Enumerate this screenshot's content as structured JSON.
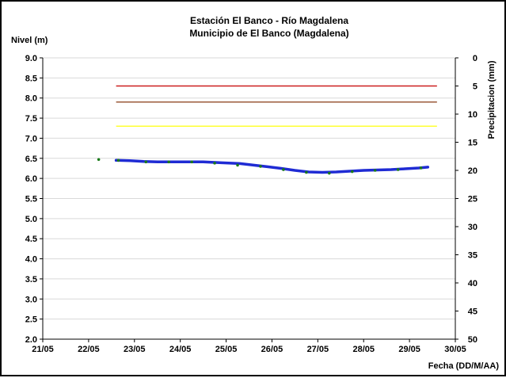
{
  "chart_data": {
    "type": "line",
    "title": "Estación El Banco - Río Magdalena",
    "subtitle": "Municipio de El Banco (Magdalena)",
    "ylabel": "Nivel (m)",
    "y2label": "Precipitacion (mm)",
    "xlabel": "Fecha (DD/M/AA)",
    "ylim": [
      2.0,
      9.0
    ],
    "y2lim": [
      0,
      50
    ],
    "y2_reversed": true,
    "x_ticks": [
      "21/05",
      "22/05",
      "23/05",
      "24/05",
      "25/05",
      "26/05",
      "27/05",
      "28/05",
      "29/05",
      "30/05"
    ],
    "y_ticks": [
      "2.0",
      "2.5",
      "3.0",
      "3.5",
      "4.0",
      "4.5",
      "5.0",
      "5.5",
      "6.0",
      "6.5",
      "7.0",
      "7.5",
      "8.0",
      "8.5",
      "9.0"
    ],
    "y2_ticks": [
      "0",
      "5",
      "10",
      "15",
      "20",
      "25",
      "30",
      "35",
      "40",
      "45",
      "50"
    ],
    "grid": true,
    "thresholds": [
      {
        "y": 8.3,
        "color": "#cc1f1f"
      },
      {
        "y": 7.9,
        "color": "#9b5a3a"
      },
      {
        "y": 7.3,
        "color": "#ffff33"
      }
    ],
    "series": [
      {
        "type": "line",
        "color": "#1f2bd4",
        "points": [
          [
            22.6,
            6.45
          ],
          [
            22.9,
            6.44
          ],
          [
            23.2,
            6.42
          ],
          [
            23.5,
            6.41
          ],
          [
            23.8,
            6.41
          ],
          [
            24.1,
            6.41
          ],
          [
            24.5,
            6.41
          ],
          [
            24.9,
            6.39
          ],
          [
            25.3,
            6.37
          ],
          [
            25.6,
            6.33
          ],
          [
            25.9,
            6.29
          ],
          [
            26.2,
            6.25
          ],
          [
            26.5,
            6.2
          ],
          [
            26.8,
            6.16
          ],
          [
            27.1,
            6.15
          ],
          [
            27.4,
            6.16
          ],
          [
            27.7,
            6.18
          ],
          [
            28.0,
            6.2
          ],
          [
            28.3,
            6.21
          ],
          [
            28.6,
            6.22
          ],
          [
            28.9,
            6.24
          ],
          [
            29.2,
            6.26
          ],
          [
            29.4,
            6.28
          ]
        ]
      },
      {
        "type": "scatter",
        "color": "#1a7a1a",
        "points": [
          [
            22.22,
            6.47
          ],
          [
            22.65,
            6.45
          ],
          [
            23.25,
            6.41
          ],
          [
            23.75,
            6.41
          ],
          [
            24.25,
            6.41
          ],
          [
            24.75,
            6.38
          ],
          [
            25.25,
            6.33
          ],
          [
            25.75,
            6.3
          ],
          [
            26.25,
            6.22
          ],
          [
            26.75,
            6.15
          ],
          [
            27.25,
            6.13
          ],
          [
            27.75,
            6.17
          ],
          [
            28.25,
            6.2
          ],
          [
            28.75,
            6.22
          ],
          [
            29.25,
            6.26
          ]
        ]
      }
    ]
  }
}
